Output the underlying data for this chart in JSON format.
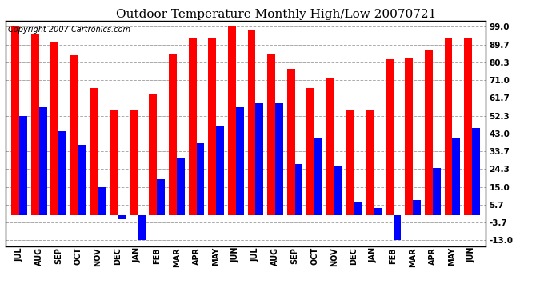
{
  "title": "Outdoor Temperature Monthly High/Low 20070721",
  "copyright": "Copyright 2007 Cartronics.com",
  "months": [
    "JUL",
    "AUG",
    "SEP",
    "OCT",
    "NOV",
    "DEC",
    "JAN",
    "FEB",
    "MAR",
    "APR",
    "MAY",
    "JUN",
    "JUL",
    "AUG",
    "SEP",
    "OCT",
    "NOV",
    "DEC",
    "JAN",
    "FEB",
    "MAR",
    "APR",
    "MAY",
    "JUN"
  ],
  "highs": [
    99.0,
    95.0,
    91.0,
    84.0,
    67.0,
    55.0,
    55.0,
    64.0,
    85.0,
    93.0,
    93.0,
    99.0,
    97.0,
    85.0,
    77.0,
    67.0,
    72.0,
    55.0,
    55.0,
    82.0,
    83.0,
    87.0,
    93.0,
    93.0
  ],
  "lows": [
    52.0,
    57.0,
    44.0,
    37.0,
    15.0,
    -2.0,
    -13.0,
    19.0,
    30.0,
    38.0,
    47.0,
    57.0,
    59.0,
    59.0,
    27.0,
    41.0,
    26.0,
    7.0,
    4.0,
    -13.0,
    8.0,
    25.0,
    41.0,
    46.0
  ],
  "high_color": "#ff0000",
  "low_color": "#0000ff",
  "bg_color": "#ffffff",
  "grid_color": "#aaaaaa",
  "yticks": [
    -13.0,
    -3.7,
    5.7,
    15.0,
    24.3,
    33.7,
    43.0,
    52.3,
    61.7,
    71.0,
    80.3,
    89.7,
    99.0
  ],
  "ylim": [
    -16.0,
    102.0
  ],
  "title_fontsize": 11,
  "copyright_fontsize": 7,
  "bar_width": 0.4
}
